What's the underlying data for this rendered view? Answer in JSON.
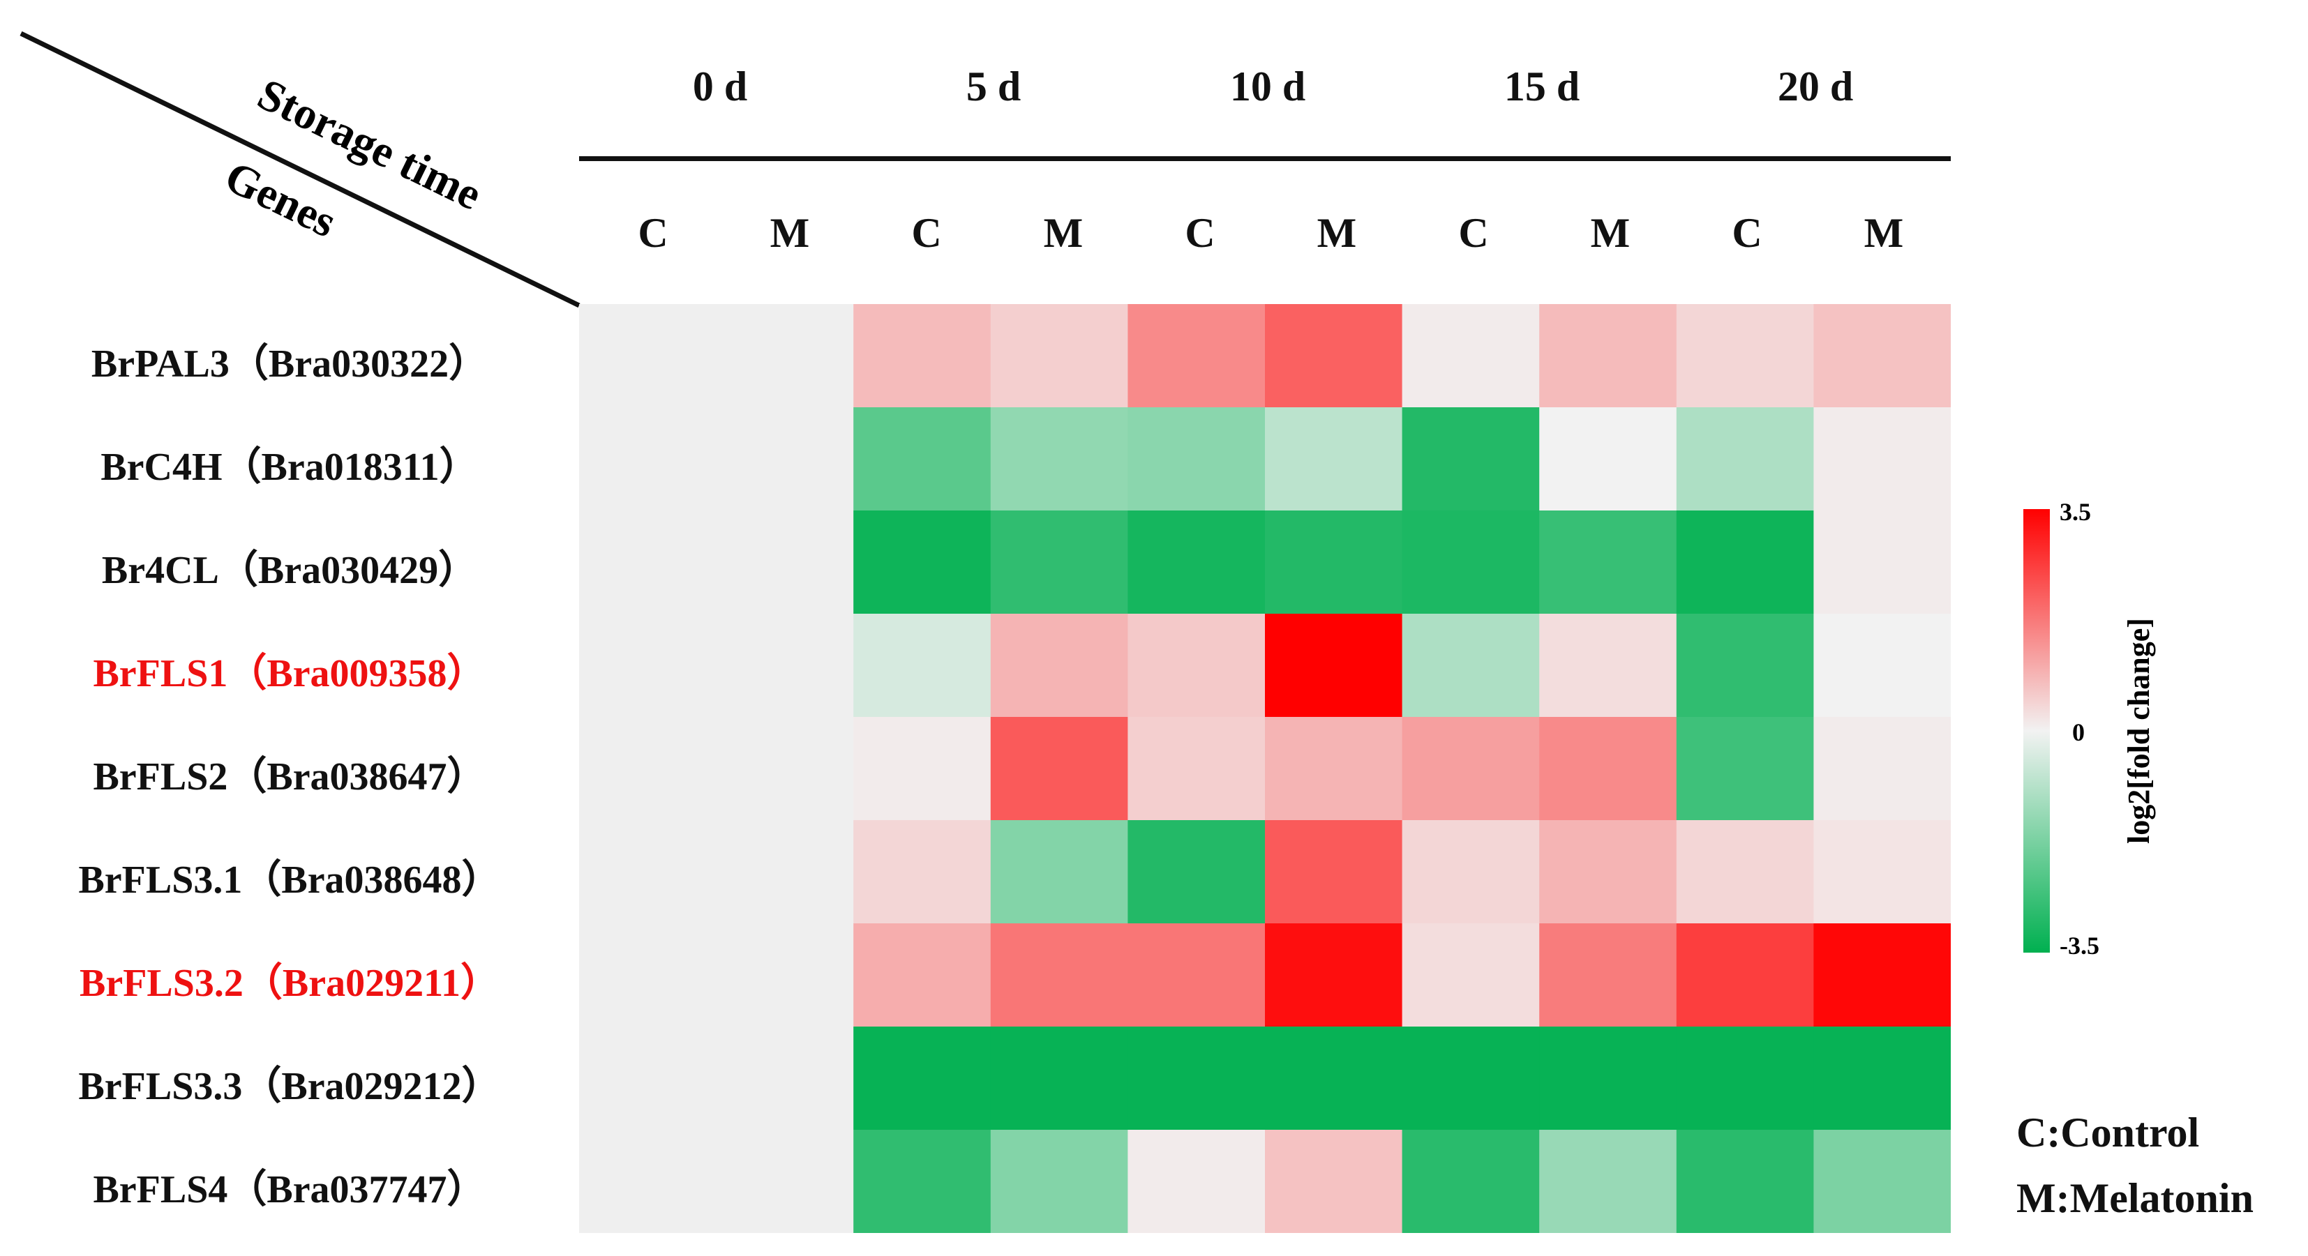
{
  "chart_data": {
    "type": "heatmap",
    "corner_labels": {
      "top": "Storage time",
      "bottom": "Genes"
    },
    "time_points": [
      "0 d",
      "5 d",
      "10 d",
      "15 d",
      "20 d"
    ],
    "conditions": [
      "C",
      "M",
      "C",
      "M",
      "C",
      "M",
      "C",
      "M",
      "C",
      "M"
    ],
    "genes": [
      {
        "label": "BrPAL3（Bra030322）",
        "highlight": false
      },
      {
        "label": "BrC4H（Bra018311）",
        "highlight": false
      },
      {
        "label": "Br4CL（Bra030429）",
        "highlight": false
      },
      {
        "label": "BrFLS1（Bra009358）",
        "highlight": true
      },
      {
        "label": "BrFLS2（Bra038647）",
        "highlight": false
      },
      {
        "label": "BrFLS3.1（Bra038648）",
        "highlight": false
      },
      {
        "label": "BrFLS3.2（Bra029211）",
        "highlight": true
      },
      {
        "label": "BrFLS3.3（Bra029212）",
        "highlight": false
      },
      {
        "label": "BrFLS4（Bra037747）",
        "highlight": false
      }
    ],
    "values": [
      [
        0,
        0,
        0.8,
        0.5,
        1.5,
        2.1,
        0.1,
        0.8,
        0.4,
        0.7
      ],
      [
        0,
        0,
        -2.2,
        -1.4,
        -1.5,
        -0.8,
        -3.0,
        0,
        -1.0,
        0.1
      ],
      [
        0,
        0,
        -3.3,
        -2.8,
        -3.2,
        -3.0,
        -3.1,
        -2.7,
        -3.3,
        0.1
      ],
      [
        0,
        0,
        -0.4,
        0.9,
        0.6,
        3.5,
        -1.0,
        0.3,
        -2.8,
        0
      ],
      [
        0,
        0,
        0.1,
        2.2,
        0.5,
        0.9,
        1.2,
        1.5,
        -2.6,
        0.1
      ],
      [
        0,
        0,
        0.4,
        -1.6,
        -3.0,
        2.2,
        0.4,
        0.9,
        0.4,
        0.2
      ],
      [
        0,
        0,
        1.0,
        1.8,
        1.8,
        3.3,
        0.3,
        1.7,
        2.6,
        3.4
      ],
      [
        0,
        0,
        -3.4,
        -3.4,
        -3.4,
        -3.4,
        -3.4,
        -3.4,
        -3.4,
        -3.4
      ],
      [
        0,
        0,
        -2.8,
        -1.6,
        0.1,
        0.7,
        -2.9,
        -1.3,
        -2.9,
        -1.7
      ]
    ],
    "blank_columns": [
      0,
      1
    ],
    "colorbar": {
      "min": -3.5,
      "max": 3.5,
      "mid": 0,
      "label": "log2[fold change]",
      "ticks": [
        "3.5",
        "0",
        "-3.5"
      ],
      "colors": {
        "low": "#00b050",
        "mid": "#f2f2f2",
        "high": "#ff0000",
        "blank": "#efefef"
      }
    },
    "legend_notes": [
      "C:Control",
      "M:Melatonin"
    ]
  }
}
